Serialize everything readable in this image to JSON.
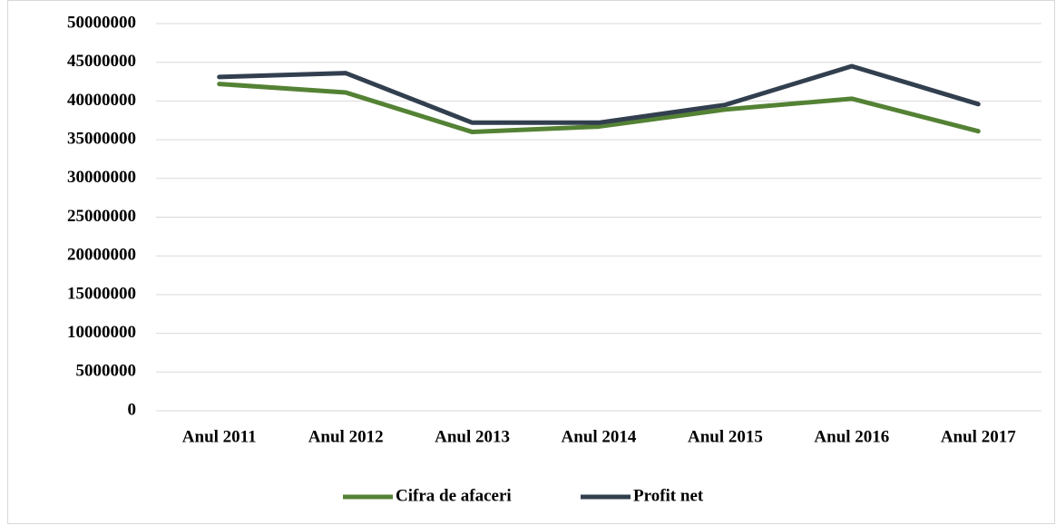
{
  "chart_data": {
    "type": "line",
    "categories": [
      "Anul 2011",
      "Anul 2012",
      "Anul 2013",
      "Anul 2014",
      "Anul 2015",
      "Anul 2016",
      "Anul 2017"
    ],
    "series": [
      {
        "name": "Cifra de afaceri",
        "color": "#548235",
        "values": [
          42200000,
          41100000,
          36000000,
          36700000,
          38900000,
          40300000,
          36100000
        ]
      },
      {
        "name": "Profit net",
        "color": "#323f4f",
        "values": [
          43100000,
          43600000,
          37200000,
          37200000,
          39500000,
          44500000,
          39600000
        ]
      }
    ],
    "ylim": [
      0,
      50000000
    ],
    "yticks": [
      0,
      5000000,
      10000000,
      15000000,
      20000000,
      25000000,
      30000000,
      35000000,
      40000000,
      45000000,
      50000000
    ],
    "grid": true,
    "legend": "bottom"
  }
}
